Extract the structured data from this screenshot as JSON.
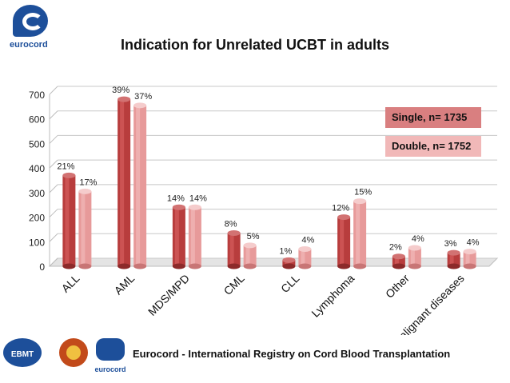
{
  "header": {
    "logo_text": "eurocord"
  },
  "chart_data": {
    "type": "bar",
    "title": "Indication for Unrelated UCBT in adults",
    "categories": [
      "ALL",
      "AML",
      "MDS/MPD",
      "CML",
      "CLL",
      "Lymphoma",
      "Other",
      "Non malignant diseases"
    ],
    "series": [
      {
        "name": "Single, n= 1735",
        "color": "#b83d3d",
        "values": [
          370,
          680,
          240,
          135,
          25,
          200,
          40,
          55
        ],
        "labels": [
          "21%",
          "39%",
          "14%",
          "8%",
          "1%",
          "12%",
          "2%",
          "3%"
        ]
      },
      {
        "name": "Double, n= 1752",
        "color": "#e79a9a",
        "values": [
          305,
          655,
          240,
          85,
          70,
          265,
          75,
          60
        ],
        "labels": [
          "17%",
          "37%",
          "14%",
          "5%",
          "4%",
          "15%",
          "4%",
          "4%"
        ]
      }
    ],
    "yticks": [
      0,
      100,
      200,
      300,
      400,
      500,
      600,
      700
    ],
    "ylim": [
      0,
      700
    ],
    "grid": true,
    "legend": "right"
  },
  "footer": {
    "text": "Eurocord - International Registry on Cord Blood Transplantation",
    "logos": [
      "EBMT",
      "eurocord"
    ]
  }
}
